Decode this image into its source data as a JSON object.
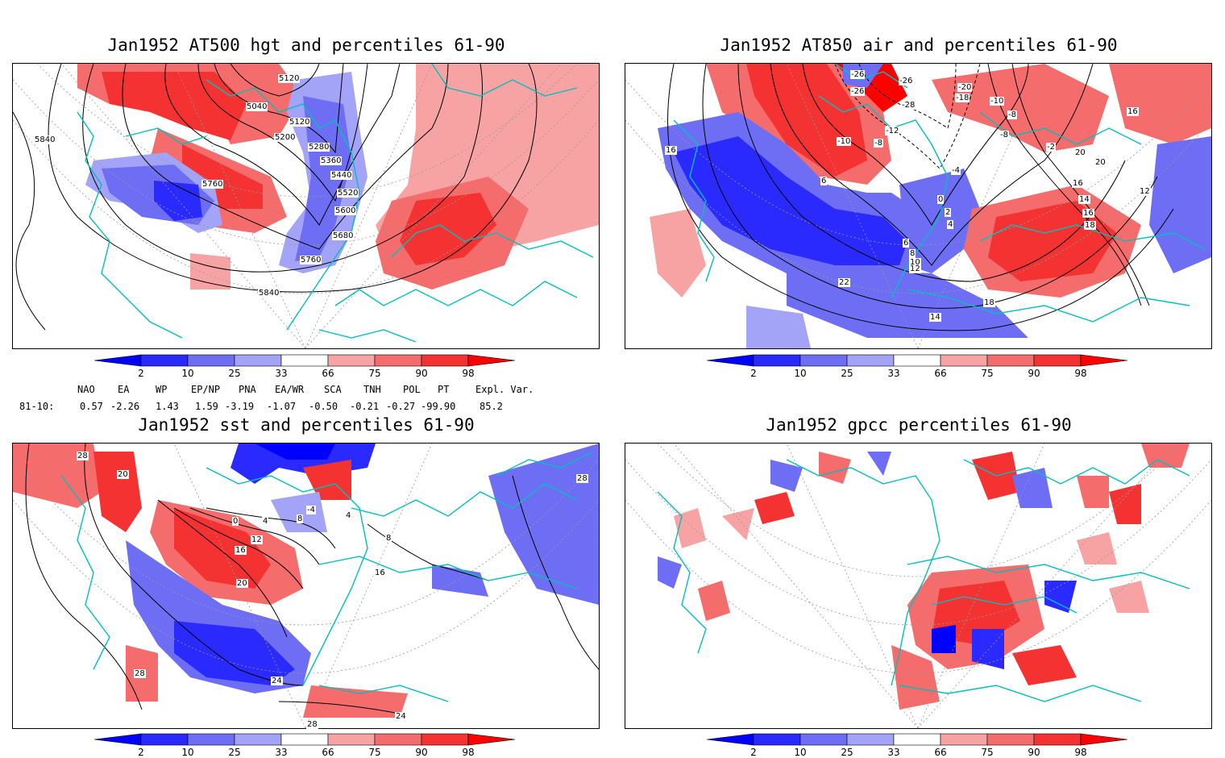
{
  "panels": [
    {
      "title": "Jan1952 AT500 hgt and percentiles 61-90",
      "contour_labels": [
        "5120",
        "5040",
        "5120",
        "5200",
        "5280",
        "5360",
        "5440",
        "5520",
        "5600",
        "5680",
        "5760",
        "5760",
        "5840",
        "5840"
      ]
    },
    {
      "title": "Jan1952 AT850 air and percentiles 61-90",
      "contour_labels": [
        "-26",
        "-26",
        "-26",
        "-20",
        "-18",
        "-28",
        "-12",
        "-10",
        "-8",
        "-8",
        "-10",
        "-8",
        "-2",
        "-4",
        "16",
        "16",
        "16",
        "6",
        "0",
        "2",
        "4",
        "6",
        "8",
        "10",
        "12",
        "12",
        "14",
        "16",
        "18",
        "20",
        "22",
        "14",
        "18",
        "20"
      ]
    },
    {
      "title": "Jan1952 sst and percentiles 61-90",
      "contour_labels": [
        "28",
        "20",
        "0",
        "4",
        "8",
        "12",
        "16",
        "20",
        "24",
        "28",
        "28",
        "24",
        "28",
        "16",
        "-4",
        "4",
        "8"
      ]
    },
    {
      "title": "Jan1952 gpcc percentiles 61-90",
      "contour_labels": []
    }
  ],
  "colorbar": {
    "labels": [
      "2",
      "10",
      "25",
      "33",
      "66",
      "75",
      "90",
      "98"
    ],
    "colors": {
      "below2": "#0000ff",
      "b10": "#2a2aff",
      "b25": "#6e6ef5",
      "b33": "#a3a3f7",
      "a66": "#f7a3a3",
      "a75": "#f56c6c",
      "a90": "#f53232",
      "above98": "#ff0000"
    }
  },
  "indices": {
    "headers": [
      "NAO",
      "EA",
      "WP",
      "EP/NP",
      "PNA",
      "EA/WR",
      "SCA",
      "TNH",
      "POL",
      "PT",
      "Expl. Var."
    ],
    "row_label": "81-10:",
    "values": [
      "0.57",
      "-2.26",
      "1.43",
      "1.59",
      "-3.19",
      "-1.07",
      "-0.50",
      "-0.21",
      "-0.27",
      "-99.90",
      "85.2"
    ]
  },
  "map_colors": {
    "coast": "#00c0c0",
    "contour": "#000000",
    "grid": "#999999"
  }
}
